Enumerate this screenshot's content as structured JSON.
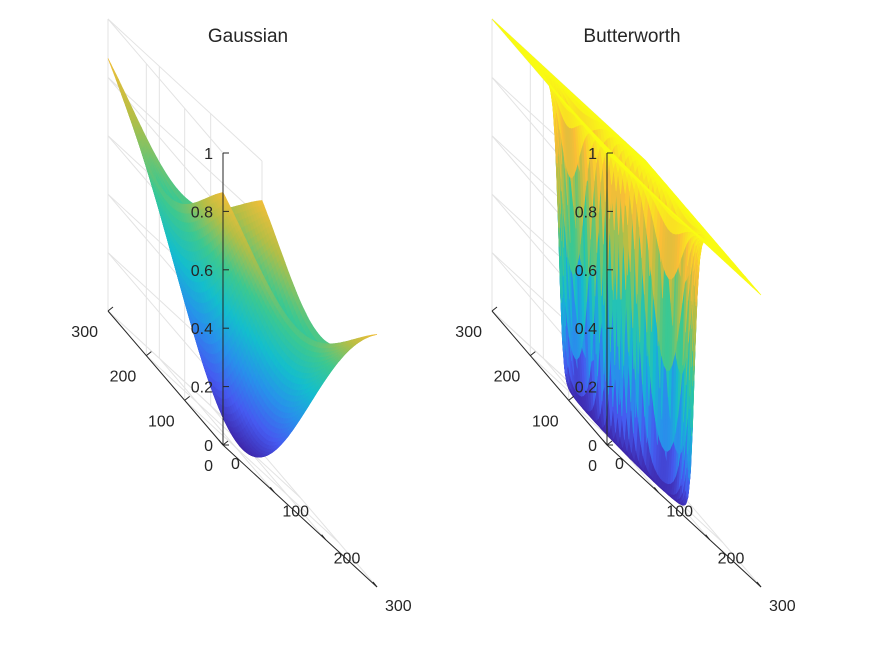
{
  "figure": {
    "background": "#ffffff",
    "axis_color": "#262626",
    "grid_color": "#e3e3e3",
    "colormap": "parula"
  },
  "chart_data": [
    {
      "type": "surface3d",
      "title": "Gaussian",
      "filter": "gaussian high-pass",
      "x_range": [
        0,
        300
      ],
      "y_range": [
        0,
        300
      ],
      "z_range": [
        0,
        1
      ],
      "x_ticks": [
        "0",
        "100",
        "200",
        "300"
      ],
      "y_ticks": [
        "0",
        "100",
        "200",
        "300"
      ],
      "z_ticks": [
        "0",
        "0.2",
        "0.4",
        "0.6",
        "0.8",
        "1"
      ],
      "center": [
        150,
        150
      ],
      "corner_value": 1.0,
      "edge_mid_value": 0.71,
      "min_value": 0.0,
      "grid": "on",
      "view": "3-D isometric"
    },
    {
      "type": "surface3d",
      "title": "Butterworth",
      "filter": "butterworth high-pass",
      "x_range": [
        0,
        300
      ],
      "y_range": [
        0,
        300
      ],
      "z_range": [
        0,
        1
      ],
      "x_ticks": [
        "0",
        "100",
        "200",
        "300"
      ],
      "y_ticks": [
        "0",
        "100",
        "200",
        "300"
      ],
      "z_ticks": [
        "0",
        "0.2",
        "0.4",
        "0.6",
        "0.8",
        "1"
      ],
      "center": [
        150,
        150
      ],
      "plateau_value": 1.0,
      "min_value": 0.0,
      "grid": "on",
      "view": "3-D isometric"
    }
  ]
}
